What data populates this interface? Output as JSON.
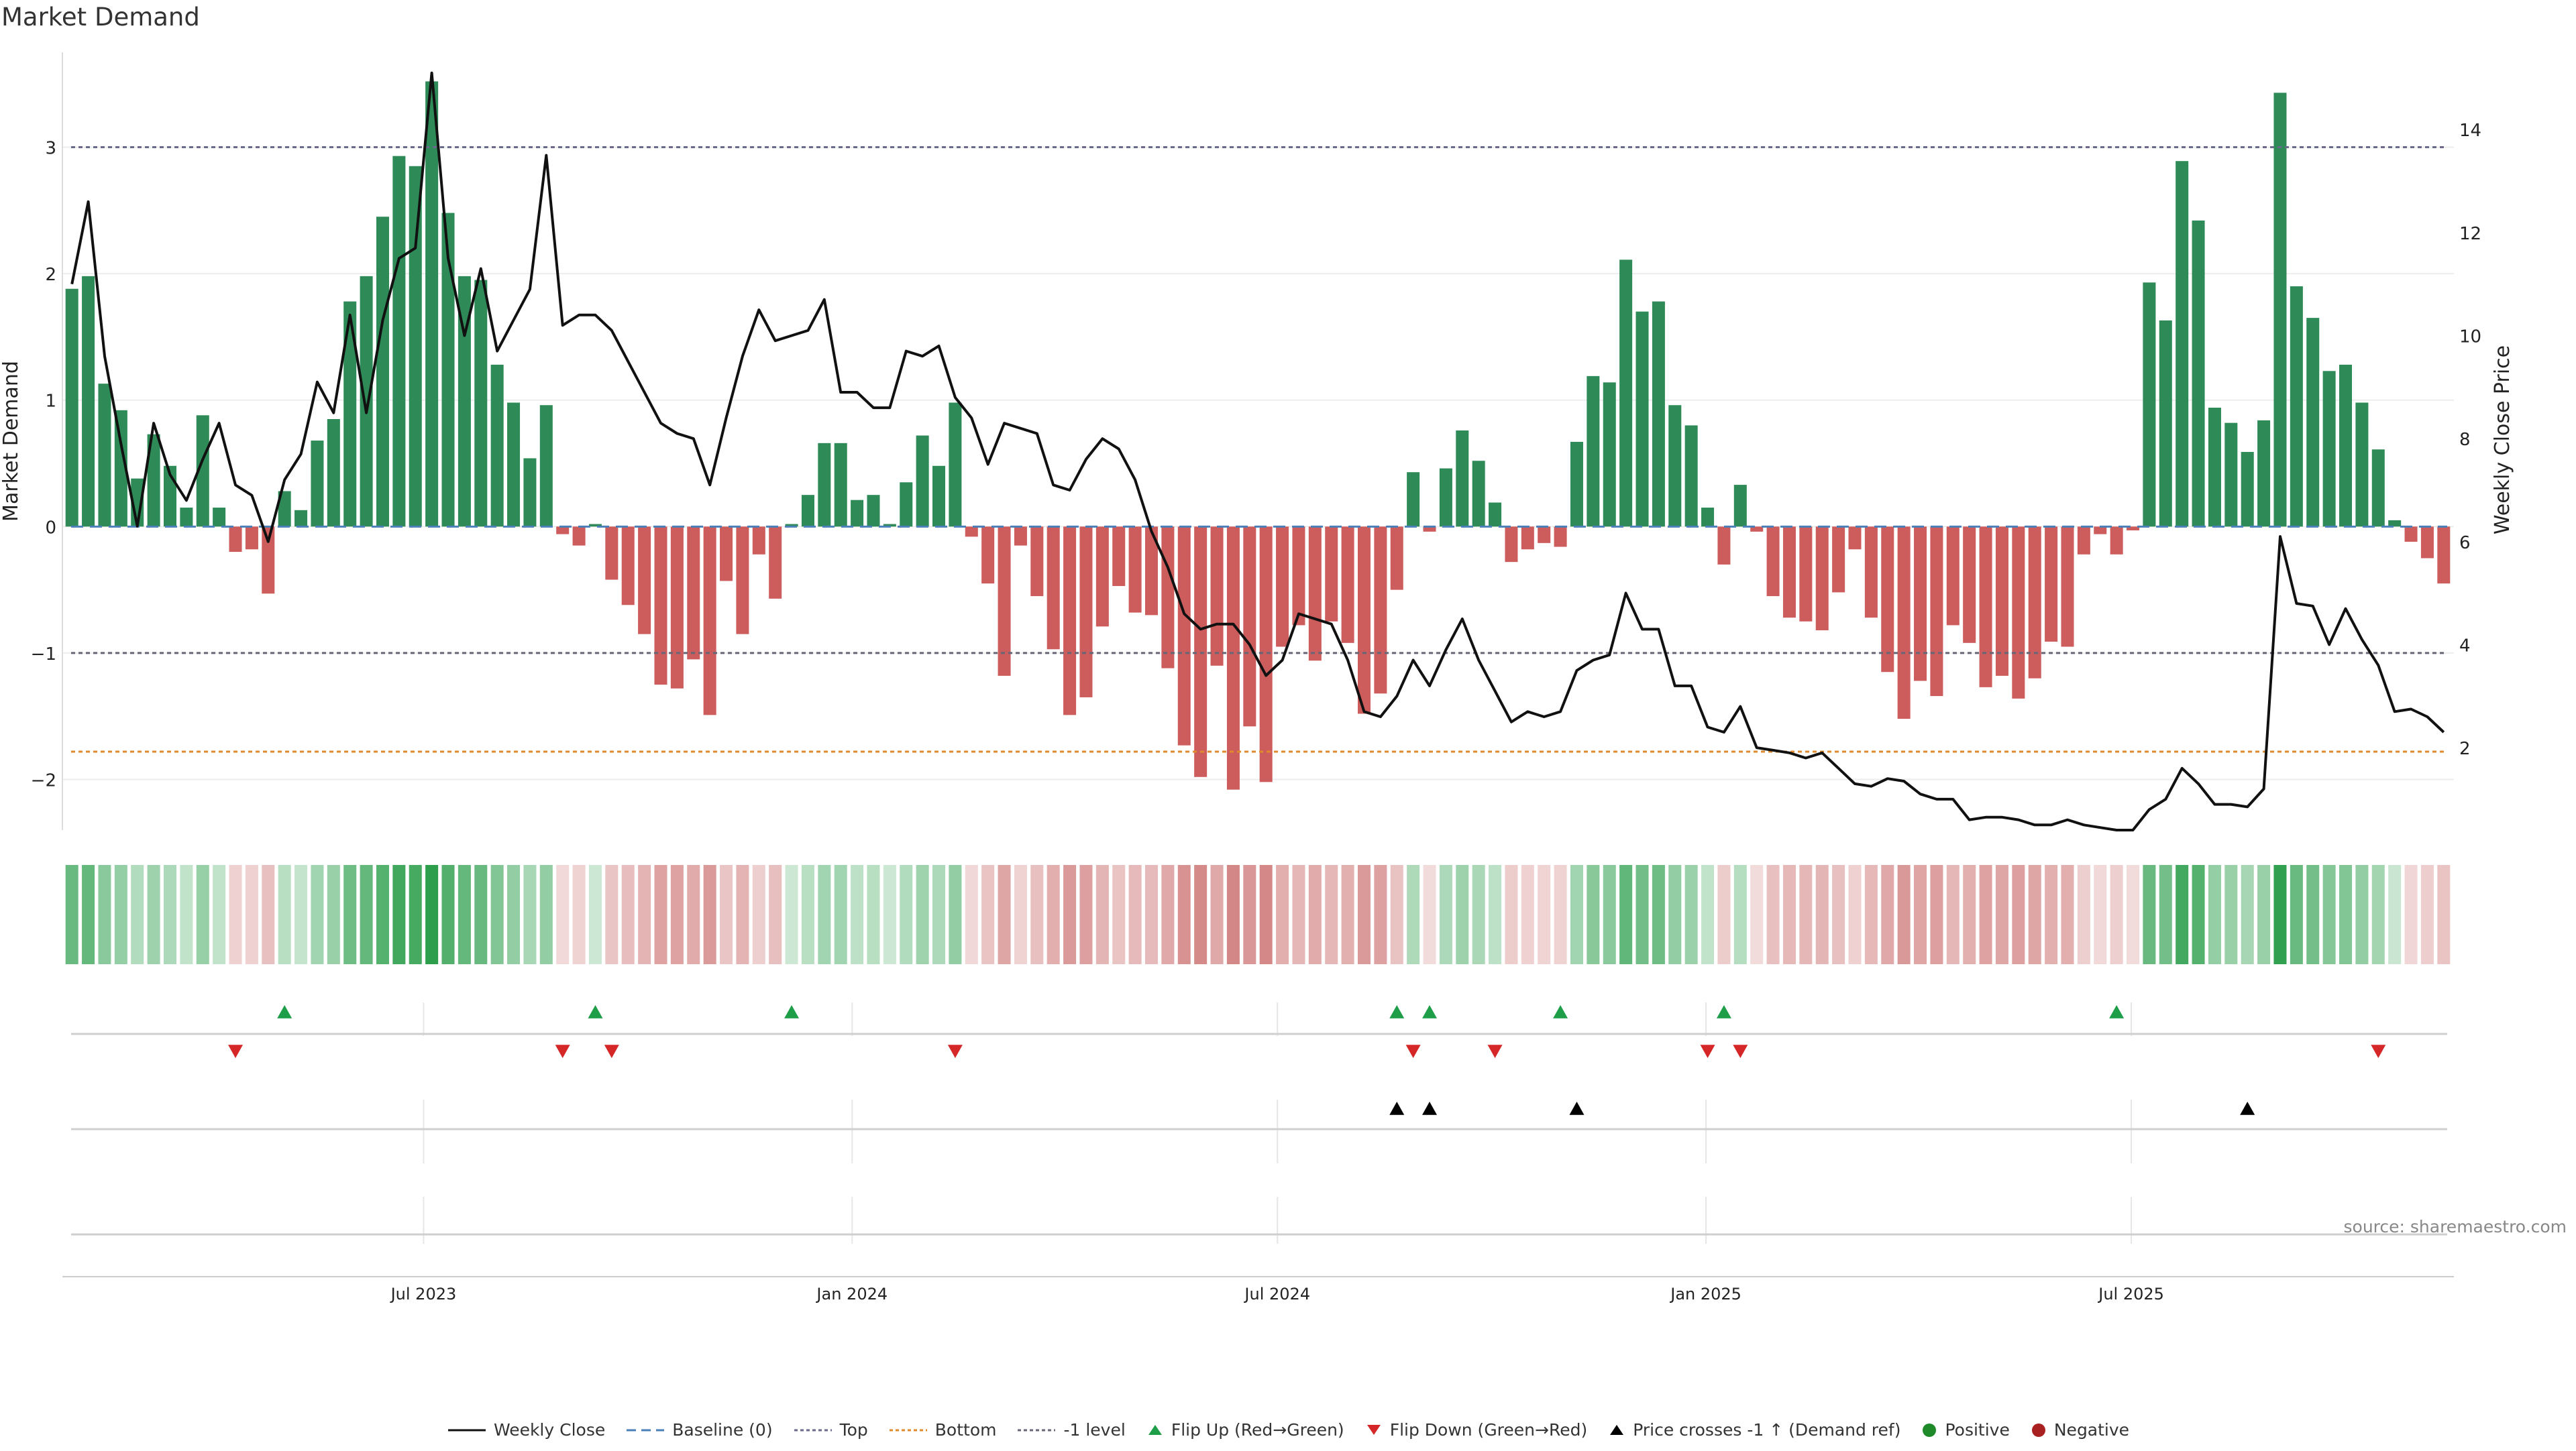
{
  "chart_data": {
    "type": "bar",
    "title": "Market Demand",
    "ylabel": "Market Demand",
    "ylabel_right": "Weekly Close Price",
    "source": "source: sharemaestro.com",
    "ylim": [
      -2.4,
      3.75
    ],
    "ylim_right": [
      0.4,
      15.5
    ],
    "yticks": [
      -2,
      -1,
      0,
      1,
      2,
      3
    ],
    "yticks_labels": [
      "−2",
      "−1",
      "0",
      "1",
      "2",
      "3"
    ],
    "yticks_right": [
      2,
      4,
      6,
      8,
      10,
      12,
      14
    ],
    "xticks": [
      {
        "week": 21.5,
        "label": "Jul 2023"
      },
      {
        "week": 47.7,
        "label": "Jan 2024"
      },
      {
        "week": 73.7,
        "label": "Jul 2024"
      },
      {
        "week": 99.9,
        "label": "Jan 2025"
      },
      {
        "week": 125.9,
        "label": "Jul 2025"
      }
    ],
    "reference_lines": {
      "top": 3.0,
      "bottom": -1.78,
      "minus_one": -1.0,
      "baseline": 0
    },
    "series": [
      {
        "name": "Market Demand",
        "values": [
          1.88,
          1.98,
          1.13,
          0.92,
          0.38,
          0.73,
          0.48,
          0.15,
          0.88,
          0.15,
          -0.2,
          -0.18,
          -0.53,
          0.28,
          0.13,
          0.68,
          0.85,
          1.78,
          1.98,
          2.45,
          2.93,
          2.85,
          3.52,
          2.48,
          1.98,
          1.95,
          1.28,
          0.98,
          0.54,
          0.96,
          -0.06,
          -0.15,
          0.02,
          -0.42,
          -0.62,
          -0.85,
          -1.25,
          -1.28,
          -1.05,
          -1.49,
          -0.43,
          -0.85,
          -0.22,
          -0.57,
          0.02,
          0.25,
          0.66,
          0.66,
          0.21,
          0.25,
          0.02,
          0.35,
          0.72,
          0.48,
          0.98,
          -0.08,
          -0.45,
          -1.18,
          -0.15,
          -0.55,
          -0.97,
          -1.49,
          -1.35,
          -0.79,
          -0.47,
          -0.68,
          -0.7,
          -1.12,
          -1.73,
          -1.98,
          -1.1,
          -2.08,
          -1.58,
          -2.02,
          -0.95,
          -0.78,
          -1.06,
          -0.75,
          -0.92,
          -1.48,
          -1.32,
          -0.5,
          0.43,
          -0.04,
          0.46,
          0.76,
          0.52,
          0.19,
          -0.28,
          -0.18,
          -0.13,
          -0.16,
          0.67,
          1.19,
          1.14,
          2.11,
          1.7,
          1.78,
          0.96,
          0.8,
          0.15,
          -0.3,
          0.33,
          -0.04,
          -0.55,
          -0.72,
          -0.75,
          -0.82,
          -0.52,
          -0.18,
          -0.72,
          -1.15,
          -1.52,
          -1.22,
          -1.34,
          -0.78,
          -0.92,
          -1.27,
          -1.18,
          -1.36,
          -1.2,
          -0.91,
          -0.95,
          -0.22,
          -0.06,
          -0.22,
          -0.03,
          1.93,
          1.63,
          2.89,
          2.42,
          0.94,
          0.82,
          0.59,
          0.84,
          3.43,
          1.9,
          1.65,
          1.23,
          1.28,
          0.98,
          0.61,
          0.05,
          -0.12,
          -0.25,
          -0.45
        ]
      },
      {
        "name": "Weekly Close",
        "axis": "right",
        "values": [
          11.0,
          12.6,
          9.6,
          7.9,
          6.3,
          8.3,
          7.3,
          6.8,
          7.6,
          8.3,
          7.1,
          6.9,
          6.0,
          7.2,
          7.7,
          9.1,
          8.5,
          10.4,
          8.5,
          10.3,
          11.5,
          11.7,
          15.1,
          11.5,
          10.0,
          11.3,
          9.7,
          10.3,
          10.9,
          13.5,
          10.2,
          10.4,
          10.4,
          10.1,
          9.5,
          8.9,
          8.3,
          8.1,
          8.0,
          7.1,
          8.4,
          9.6,
          10.5,
          9.9,
          10.0,
          10.1,
          10.7,
          8.9,
          8.9,
          8.6,
          8.6,
          9.7,
          9.6,
          9.8,
          8.8,
          8.4,
          7.5,
          8.3,
          8.2,
          8.1,
          7.1,
          7.0,
          7.6,
          8.0,
          7.8,
          7.2,
          6.2,
          5.5,
          4.6,
          4.3,
          4.4,
          4.4,
          4.0,
          3.4,
          3.7,
          4.6,
          4.5,
          4.4,
          3.7,
          2.7,
          2.6,
          3.0,
          3.7,
          3.2,
          3.9,
          4.5,
          3.7,
          3.1,
          2.5,
          2.7,
          2.6,
          2.7,
          3.5,
          3.7,
          3.8,
          5.0,
          4.3,
          4.3,
          3.2,
          3.2,
          2.4,
          2.3,
          2.8,
          2.0,
          1.95,
          1.9,
          1.8,
          1.9,
          1.6,
          1.3,
          1.25,
          1.4,
          1.35,
          1.1,
          1.0,
          1.0,
          0.6,
          0.65,
          0.65,
          0.6,
          0.5,
          0.5,
          0.6,
          0.5,
          0.45,
          0.4,
          0.4,
          0.8,
          1.0,
          1.6,
          1.3,
          0.9,
          0.9,
          0.85,
          1.2,
          6.1,
          4.8,
          4.75,
          4.0,
          4.7,
          4.1,
          3.6,
          2.7,
          2.75,
          2.6,
          2.3
        ]
      }
    ],
    "flip_up_weeks": [
      13,
      32,
      44,
      81,
      83,
      91,
      101,
      125
    ],
    "flip_down_weeks": [
      10,
      30,
      33,
      54,
      82,
      87,
      100,
      102,
      141
    ],
    "price_cross_weeks": [
      81,
      83,
      92,
      133
    ],
    "legend": [
      {
        "key": "weekly_close",
        "label": "Weekly Close"
      },
      {
        "key": "baseline",
        "label": "Baseline (0)"
      },
      {
        "key": "top",
        "label": "Top"
      },
      {
        "key": "bottom",
        "label": "Bottom"
      },
      {
        "key": "minus_one",
        "label": "-1 level"
      },
      {
        "key": "flip_up",
        "label": "Flip Up (Red→Green)"
      },
      {
        "key": "flip_down",
        "label": "Flip Down (Green→Red)"
      },
      {
        "key": "price_cross",
        "label": "Price crosses -1 ↑ (Demand ref)"
      },
      {
        "key": "positive",
        "label": "Positive"
      },
      {
        "key": "negative",
        "label": "Negative"
      }
    ],
    "colors": {
      "positive": "#2e8b57",
      "negative": "#cd5c5c",
      "line": "#111111",
      "top": "#6a6a8a",
      "bottom": "#e08a2c",
      "minus_one": "#666677",
      "baseline": "#4a7fb8",
      "flip_up": "#1f9e4a",
      "flip_down": "#d62728",
      "price_cross": "#000000",
      "legend_positive": "#1f8a2a",
      "legend_negative": "#a82020"
    }
  }
}
